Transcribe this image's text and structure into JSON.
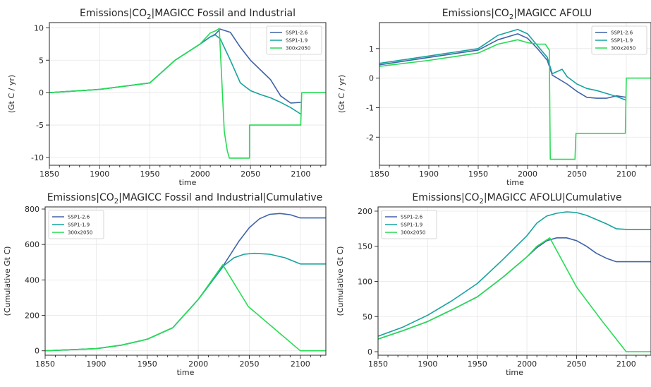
{
  "series_colors": {
    "SSP1-2.6": "#4062a8",
    "SSP1-1.9": "#16a39e",
    "300x2050": "#26dc53"
  },
  "chart_data": [
    {
      "type": "line",
      "title_main": "Emissions|CO",
      "title_sub": "2",
      "title_rest": "|MAGICC Fossil and Industrial",
      "xlabel": "time",
      "ylabel": "(Gt C / yr)",
      "xlim": [
        1850,
        2125
      ],
      "ylim": [
        -11.2,
        10.8
      ],
      "xticks": [
        1850,
        1900,
        1950,
        2000,
        2050,
        2100
      ],
      "yticks": [
        -10,
        -5,
        0,
        5,
        10
      ],
      "legend_position": "top-right",
      "grid": true,
      "series": [
        {
          "name": "SSP1-2.6",
          "x": [
            1850,
            1900,
            1950,
            1975,
            2000,
            2010,
            2015,
            2020,
            2030,
            2040,
            2050,
            2060,
            2070,
            2080,
            2090,
            2100
          ],
          "y": [
            0,
            0.5,
            1.5,
            5,
            7.5,
            8.6,
            9,
            9.8,
            9.3,
            7,
            5,
            3.5,
            2,
            -0.5,
            -1.6,
            -1.5
          ]
        },
        {
          "name": "SSP1-1.9",
          "x": [
            1850,
            1900,
            1950,
            1975,
            2000,
            2010,
            2015,
            2020,
            2030,
            2040,
            2050,
            2060,
            2070,
            2080,
            2090,
            2100
          ],
          "y": [
            0,
            0.5,
            1.5,
            5,
            7.5,
            8.6,
            8.9,
            8.3,
            5,
            1.5,
            0.3,
            -0.3,
            -0.8,
            -1.5,
            -2.3,
            -3.3
          ]
        },
        {
          "name": "300x2050",
          "x": [
            1850,
            1900,
            1950,
            1975,
            2000,
            2010,
            2015,
            2019,
            2024,
            2027,
            2029,
            2049,
            2049,
            2100,
            2101,
            2125
          ],
          "y": [
            0,
            0.5,
            1.5,
            5,
            7.5,
            9.2,
            9.5,
            9.9,
            -6,
            -9,
            -10.1,
            -10.1,
            -5,
            -5,
            0,
            0
          ]
        }
      ]
    },
    {
      "type": "line",
      "title_main": "Emissions|CO",
      "title_sub": "2",
      "title_rest": "|MAGICC AFOLU",
      "xlabel": "time",
      "ylabel": "(Gt C / yr)",
      "xlim": [
        1850,
        2125
      ],
      "ylim": [
        -2.95,
        1.88
      ],
      "xticks": [
        1850,
        1900,
        1950,
        2000,
        2050,
        2100
      ],
      "yticks": [
        -2,
        -1,
        0,
        1
      ],
      "legend_position": "top-right",
      "grid": true,
      "series": [
        {
          "name": "SSP1-2.6",
          "x": [
            1850,
            1900,
            1930,
            1950,
            1970,
            1990,
            2000,
            2010,
            2020,
            2025,
            2030,
            2040,
            2050,
            2060,
            2070,
            2080,
            2090,
            2100
          ],
          "y": [
            0.45,
            0.7,
            0.85,
            0.95,
            1.3,
            1.5,
            1.35,
            1.0,
            0.6,
            0.1,
            0.0,
            -0.2,
            -0.45,
            -0.65,
            -0.68,
            -0.68,
            -0.6,
            -0.65
          ]
        },
        {
          "name": "SSP1-1.9",
          "x": [
            1850,
            1900,
            1930,
            1950,
            1970,
            1990,
            2000,
            2010,
            2020,
            2025,
            2035,
            2040,
            2050,
            2060,
            2070,
            2080,
            2090,
            2100
          ],
          "y": [
            0.5,
            0.75,
            0.9,
            1.0,
            1.45,
            1.65,
            1.5,
            1.1,
            0.7,
            0.15,
            0.3,
            0.05,
            -0.2,
            -0.35,
            -0.42,
            -0.52,
            -0.62,
            -0.75
          ]
        },
        {
          "name": "300x2050",
          "x": [
            1850,
            1900,
            1930,
            1950,
            1970,
            1990,
            2000,
            2010,
            2018,
            2022,
            2023,
            2048,
            2049,
            2099,
            2100,
            2125
          ],
          "y": [
            0.4,
            0.6,
            0.75,
            0.85,
            1.15,
            1.3,
            1.2,
            1.15,
            1.15,
            0.95,
            -2.75,
            -2.75,
            -1.87,
            -1.87,
            0,
            0
          ]
        }
      ]
    },
    {
      "type": "line",
      "title_main": "Emissions|CO",
      "title_sub": "2",
      "title_rest": "|MAGICC Fossil and Industrial|Cumulative",
      "xlabel": "time",
      "ylabel": "(Cumulative Gt C)",
      "xlim": [
        1850,
        2125
      ],
      "ylim": [
        -25,
        812
      ],
      "xticks": [
        1850,
        1900,
        1950,
        2000,
        2050,
        2100
      ],
      "yticks": [
        0,
        200,
        400,
        600,
        800
      ],
      "legend_position": "top-left",
      "grid": true,
      "series": [
        {
          "name": "SSP1-2.6",
          "x": [
            1850,
            1900,
            1925,
            1950,
            1975,
            2000,
            2025,
            2040,
            2050,
            2060,
            2070,
            2080,
            2090,
            2100,
            2125
          ],
          "y": [
            0,
            12,
            32,
            65,
            130,
            290,
            485,
            620,
            695,
            745,
            770,
            775,
            768,
            750,
            750
          ]
        },
        {
          "name": "SSP1-1.9",
          "x": [
            1850,
            1900,
            1925,
            1950,
            1975,
            2000,
            2025,
            2035,
            2045,
            2055,
            2070,
            2085,
            2100,
            2125
          ],
          "y": [
            0,
            12,
            32,
            65,
            130,
            290,
            480,
            525,
            545,
            550,
            545,
            525,
            490,
            490
          ]
        },
        {
          "name": "300x2050",
          "x": [
            1850,
            1900,
            1925,
            1950,
            1975,
            2000,
            2024,
            2049,
            2100,
            2125
          ],
          "y": [
            0,
            12,
            32,
            65,
            130,
            290,
            485,
            250,
            0,
            0
          ]
        }
      ]
    },
    {
      "type": "line",
      "title_main": "Emissions|CO",
      "title_sub": "2",
      "title_rest": "|MAGICC AFOLU|Cumulative",
      "xlabel": "time",
      "ylabel": "(Cumulative Gt C)",
      "xlim": [
        1850,
        2125
      ],
      "ylim": [
        -5,
        206
      ],
      "xticks": [
        1850,
        1900,
        1950,
        2000,
        2050,
        2100
      ],
      "yticks": [
        0,
        50,
        100,
        150,
        200
      ],
      "legend_position": "top-left",
      "grid": true,
      "series": [
        {
          "name": "SSP1-2.6",
          "x": [
            1850,
            1875,
            1900,
            1925,
            1950,
            1975,
            2000,
            2010,
            2020,
            2030,
            2040,
            2050,
            2060,
            2070,
            2080,
            2090,
            2100,
            2125
          ],
          "y": [
            18,
            30,
            43,
            60,
            78,
            105,
            135,
            148,
            158,
            162,
            162,
            158,
            150,
            140,
            133,
            128,
            128,
            128
          ]
        },
        {
          "name": "SSP1-1.9",
          "x": [
            1850,
            1875,
            1900,
            1925,
            1950,
            1975,
            2000,
            2010,
            2020,
            2030,
            2040,
            2050,
            2060,
            2070,
            2080,
            2090,
            2100,
            2125
          ],
          "y": [
            22,
            35,
            52,
            73,
            97,
            130,
            165,
            183,
            193,
            197,
            199,
            198,
            194,
            188,
            182,
            175,
            174,
            174
          ]
        },
        {
          "name": "300x2050",
          "x": [
            1850,
            1875,
            1900,
            1925,
            1950,
            1975,
            2000,
            2010,
            2023,
            2050,
            2075,
            2100,
            2125
          ],
          "y": [
            18,
            30,
            43,
            60,
            78,
            105,
            135,
            150,
            162,
            92,
            45,
            0,
            0
          ]
        }
      ]
    }
  ]
}
